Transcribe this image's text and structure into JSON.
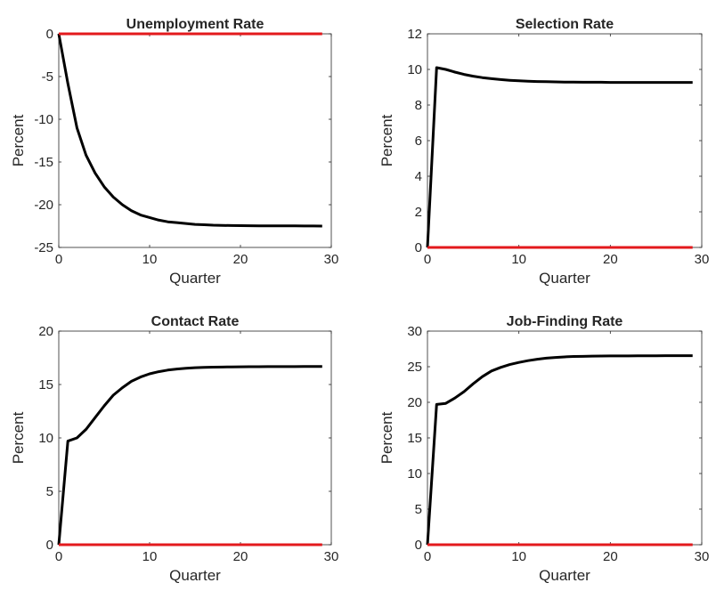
{
  "chart_data": [
    {
      "type": "line",
      "title": "Unemployment Rate",
      "xlabel": "Quarter",
      "ylabel": "Percent",
      "xlim": [
        0,
        30
      ],
      "ylim": [
        -25,
        0
      ],
      "xticks": [
        0,
        10,
        20,
        30
      ],
      "yticks": [
        -25,
        -20,
        -15,
        -10,
        -5,
        0
      ],
      "grid": false,
      "series": [
        {
          "color": "#000000",
          "x": [
            0,
            1,
            2,
            3,
            4,
            5,
            6,
            7,
            8,
            9,
            10,
            11,
            12,
            13,
            14,
            15,
            16,
            17,
            18,
            19,
            20,
            21,
            22,
            23,
            24,
            25,
            26,
            27,
            28,
            29
          ],
          "y": [
            0,
            -5.8,
            -11,
            -14.2,
            -16.3,
            -17.9,
            -19.1,
            -20,
            -20.7,
            -21.2,
            -21.5,
            -21.8,
            -22,
            -22.1,
            -22.2,
            -22.3,
            -22.35,
            -22.4,
            -22.42,
            -22.44,
            -22.45,
            -22.46,
            -22.47,
            -22.47,
            -22.48,
            -22.48,
            -22.48,
            -22.49,
            -22.49,
            -22.5
          ]
        },
        {
          "color": "#e3191c",
          "x": [
            0,
            29
          ],
          "y": [
            0,
            0
          ]
        }
      ]
    },
    {
      "type": "line",
      "title": "Selection Rate",
      "xlabel": "Quarter",
      "ylabel": "Percent",
      "xlim": [
        0,
        30
      ],
      "ylim": [
        0,
        12
      ],
      "xticks": [
        0,
        10,
        20,
        30
      ],
      "yticks": [
        0,
        2,
        4,
        6,
        8,
        10,
        12
      ],
      "grid": false,
      "series": [
        {
          "color": "#000000",
          "x": [
            0,
            1,
            2,
            3,
            4,
            5,
            6,
            7,
            8,
            9,
            10,
            11,
            12,
            13,
            14,
            15,
            16,
            17,
            18,
            19,
            20,
            21,
            22,
            23,
            24,
            25,
            26,
            27,
            28,
            29
          ],
          "y": [
            0,
            10.1,
            10,
            9.85,
            9.72,
            9.62,
            9.54,
            9.48,
            9.43,
            9.39,
            9.36,
            9.34,
            9.32,
            9.31,
            9.3,
            9.29,
            9.29,
            9.28,
            9.28,
            9.28,
            9.27,
            9.27,
            9.27,
            9.27,
            9.27,
            9.27,
            9.27,
            9.27,
            9.27,
            9.27
          ]
        },
        {
          "color": "#e3191c",
          "x": [
            0,
            29
          ],
          "y": [
            0,
            0
          ]
        }
      ]
    },
    {
      "type": "line",
      "title": "Contact Rate",
      "xlabel": "Quarter",
      "ylabel": "Percent",
      "xlim": [
        0,
        30
      ],
      "ylim": [
        0,
        20
      ],
      "xticks": [
        0,
        10,
        20,
        30
      ],
      "yticks": [
        0,
        5,
        10,
        15,
        20
      ],
      "grid": false,
      "series": [
        {
          "color": "#000000",
          "x": [
            0,
            1,
            2,
            3,
            4,
            5,
            6,
            7,
            8,
            9,
            10,
            11,
            12,
            13,
            14,
            15,
            16,
            17,
            18,
            19,
            20,
            21,
            22,
            23,
            24,
            25,
            26,
            27,
            28,
            29
          ],
          "y": [
            0,
            9.7,
            10,
            10.8,
            11.9,
            13,
            14,
            14.7,
            15.3,
            15.7,
            16,
            16.2,
            16.35,
            16.45,
            16.52,
            16.57,
            16.6,
            16.62,
            16.64,
            16.65,
            16.66,
            16.67,
            16.67,
            16.68,
            16.68,
            16.68,
            16.68,
            16.69,
            16.69,
            16.69
          ]
        },
        {
          "color": "#e3191c",
          "x": [
            0,
            29
          ],
          "y": [
            0,
            0
          ]
        }
      ]
    },
    {
      "type": "line",
      "title": "Job-Finding Rate",
      "xlabel": "Quarter",
      "ylabel": "Percent",
      "xlim": [
        0,
        30
      ],
      "ylim": [
        0,
        30
      ],
      "xticks": [
        0,
        10,
        20,
        30
      ],
      "yticks": [
        0,
        5,
        10,
        15,
        20,
        25,
        30
      ],
      "grid": false,
      "series": [
        {
          "color": "#000000",
          "x": [
            0,
            1,
            2,
            3,
            4,
            5,
            6,
            7,
            8,
            9,
            10,
            11,
            12,
            13,
            14,
            15,
            16,
            17,
            18,
            19,
            20,
            21,
            22,
            23,
            24,
            25,
            26,
            27,
            28,
            29
          ],
          "y": [
            0,
            19.7,
            19.85,
            20.6,
            21.5,
            22.6,
            23.6,
            24.4,
            24.9,
            25.3,
            25.6,
            25.85,
            26.05,
            26.2,
            26.3,
            26.38,
            26.43,
            26.46,
            26.48,
            26.5,
            26.51,
            26.52,
            26.52,
            26.53,
            26.53,
            26.53,
            26.54,
            26.54,
            26.54,
            26.54
          ]
        },
        {
          "color": "#e3191c",
          "x": [
            0,
            29
          ],
          "y": [
            0,
            0
          ]
        }
      ]
    }
  ]
}
